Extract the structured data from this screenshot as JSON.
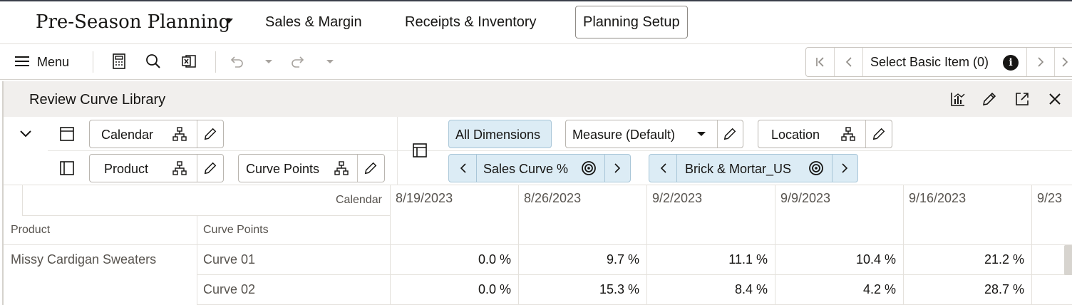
{
  "app": {
    "title": "Pre-Season Planning",
    "tabs": [
      {
        "label": "Sales & Margin"
      },
      {
        "label": "Receipts & Inventory"
      },
      {
        "label": "Planning Setup"
      }
    ]
  },
  "toolbar": {
    "menu_label": "Menu",
    "icons": [
      "calculator-icon",
      "search-icon",
      "excel-icon",
      "undo-icon",
      "redo-icon"
    ],
    "pager_label": "Select Basic Item (0)",
    "info_label": "i"
  },
  "panel": {
    "title": "Review Curve Library"
  },
  "dimensions": {
    "calendar": "Calendar",
    "product": "Product",
    "curve_points": "Curve Points",
    "all_dimensions": "All Dimensions",
    "measure": "Measure (Default)",
    "location": "Location",
    "measure_value": "Sales Curve %",
    "location_value": "Brick & Mortar_US"
  },
  "grid": {
    "calendar_label": "Calendar",
    "product_header": "Product",
    "curve_points_header": "Curve Points",
    "dates": [
      "8/19/2023",
      "8/26/2023",
      "9/2/2023",
      "9/9/2023",
      "9/16/2023",
      "9/23"
    ],
    "product_name": "Missy Cardigan Sweaters",
    "rows": [
      {
        "curve": "Curve 01",
        "values": [
          "0.0 %",
          "9.7 %",
          "11.1 %",
          "10.4 %",
          "21.2 %"
        ]
      },
      {
        "curve": "Curve 02",
        "values": [
          "0.0 %",
          "15.3 %",
          "8.4 %",
          "4.2 %",
          "28.7 %"
        ]
      }
    ]
  },
  "colors": {
    "accent_chip": "#dcecf5",
    "panel_header": "#f1efed"
  }
}
